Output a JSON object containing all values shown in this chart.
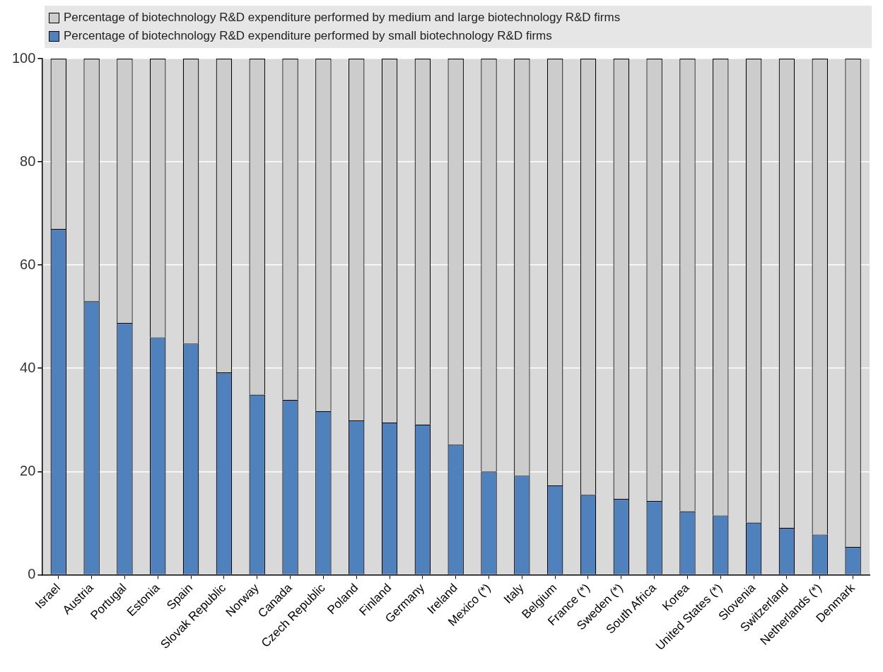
{
  "chart_data": {
    "type": "bar",
    "stacked": true,
    "categories": [
      "Israel",
      "Austria",
      "Portugal",
      "Estonia",
      "Spain",
      "Slovak Republic",
      "Norway",
      "Canada",
      "Czech Republic",
      "Poland",
      "Finland",
      "Germany",
      "Ireland",
      "Mexico (*)",
      "Italy",
      "Belgium",
      "France (*)",
      "Sweden (*)",
      "South Africa",
      "Korea",
      "United States (*)",
      "Slovenia",
      "Switzerland",
      "Netherlands (*)",
      "Denmark"
    ],
    "series": [
      {
        "name": "Percentage of biotechnology R&D expenditure performed by small biotechnology R&D firms",
        "color": "#4f81bd",
        "values": [
          67.0,
          53.0,
          48.8,
          46.0,
          44.8,
          39.2,
          34.9,
          33.9,
          31.7,
          29.9,
          29.5,
          29.1,
          25.2,
          20.0,
          19.2,
          17.3,
          15.5,
          14.7,
          14.3,
          12.3,
          11.5,
          10.1,
          9.1,
          7.8,
          5.4
        ]
      },
      {
        "name": "Percentage of biotechnology R&D expenditure performed by medium and large biotechnology R&D firms",
        "color": "#cccccc",
        "values": [
          33.0,
          47.0,
          51.2,
          54.0,
          55.2,
          60.8,
          65.1,
          66.1,
          68.3,
          70.1,
          70.5,
          70.9,
          74.8,
          80.0,
          80.8,
          82.7,
          84.5,
          85.3,
          85.7,
          87.7,
          88.5,
          89.9,
          90.9,
          92.2,
          94.6
        ]
      }
    ],
    "ylim": [
      0,
      100
    ],
    "yticks": [
      0,
      20,
      40,
      60,
      80,
      100
    ],
    "grid": true,
    "legend": "top"
  }
}
